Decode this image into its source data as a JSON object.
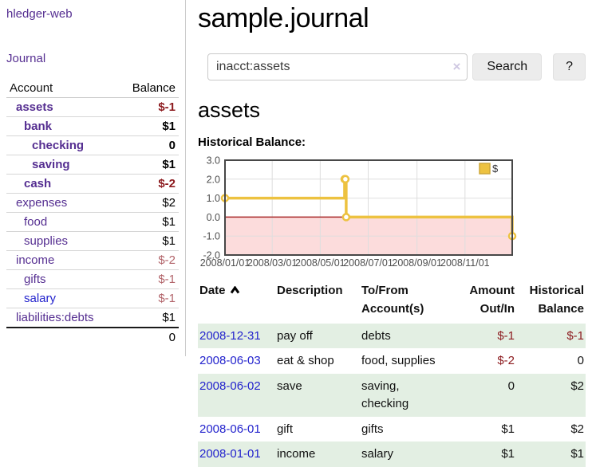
{
  "colors": {
    "purple": "#552e91",
    "link-blue": "#2323cd",
    "neg-strong": "#8c1a1e",
    "neg-soft": "#b2646a",
    "row-green": "#e3efe3",
    "series-yellow": "#edc240",
    "zero-line": "#a82828",
    "neg-region": "#fcdcdc"
  },
  "sidebar": {
    "app_title": "hledger-web",
    "journal_link": "Journal",
    "accounts_table": {
      "headers": {
        "account": "Account",
        "balance": "Balance"
      },
      "rows": [
        {
          "name": "assets",
          "balance": "$-1",
          "depth": 1,
          "bold": true,
          "negative": "strong"
        },
        {
          "name": "bank",
          "balance": "$1",
          "depth": 2,
          "bold": true
        },
        {
          "name": "checking",
          "balance": "0",
          "depth": 3,
          "bold": true
        },
        {
          "name": "saving",
          "balance": "$1",
          "depth": 3,
          "bold": true
        },
        {
          "name": "cash",
          "balance": "$-2",
          "depth": 2,
          "bold": true,
          "negative": "strong"
        },
        {
          "name": "expenses",
          "balance": "$2",
          "depth": 1
        },
        {
          "name": "food",
          "balance": "$1",
          "depth": 2
        },
        {
          "name": "supplies",
          "balance": "$1",
          "depth": 2
        },
        {
          "name": "income",
          "balance": "$-2",
          "depth": 1,
          "negative": "soft"
        },
        {
          "name": "gifts",
          "balance": "$-1",
          "depth": 2,
          "negative": "soft"
        },
        {
          "name": "salary",
          "balance": "$-1",
          "depth": 2,
          "negative": "soft",
          "link_color": "blue"
        },
        {
          "name": "liabilities:debts",
          "balance": "$1",
          "depth": 1
        }
      ],
      "total": "0"
    }
  },
  "main": {
    "title": "sample.journal",
    "search": {
      "value": "inacct:assets",
      "clear_icon": "×",
      "search_button": "Search",
      "help_button": "?"
    },
    "account_heading": "assets",
    "chart_heading": "Historical Balance:",
    "register": {
      "sort": {
        "column": "Date",
        "direction": "ascending"
      },
      "headers": [
        "Date",
        "Description",
        "To/From Account(s)",
        "Amount Out/In",
        "Historical Balance"
      ],
      "rows": [
        {
          "date": "2008-12-31",
          "description": "pay off",
          "accounts": "debts",
          "amount": "$-1",
          "balance": "$-1",
          "amount_negative": true,
          "balance_negative": true
        },
        {
          "date": "2008-06-03",
          "description": "eat & shop",
          "accounts": "food, supplies",
          "amount": "$-2",
          "balance": "0",
          "amount_negative": true
        },
        {
          "date": "2008-06-02",
          "description": "save",
          "accounts": "saving, checking",
          "amount": "0",
          "balance": "$2"
        },
        {
          "date": "2008-06-01",
          "description": "gift",
          "accounts": "gifts",
          "amount": "$1",
          "balance": "$2"
        },
        {
          "date": "2008-01-01",
          "description": "income",
          "accounts": "salary",
          "amount": "$1",
          "balance": "$1"
        }
      ]
    }
  },
  "chart_data": {
    "type": "line",
    "step": true,
    "title": "Historical Balance:",
    "xlabel": "",
    "ylabel": "",
    "series": [
      {
        "name": "$",
        "color": "#edc240",
        "points": [
          [
            "2008-01-01",
            1
          ],
          [
            "2008-06-01",
            2
          ],
          [
            "2008-06-02",
            2
          ],
          [
            "2008-06-03",
            0
          ],
          [
            "2008-12-31",
            -1
          ]
        ]
      }
    ],
    "xlim": [
      "2008-01-01",
      "2008-12-31"
    ],
    "ylim": [
      -2,
      3
    ],
    "y_ticks": [
      "3.0",
      "2.0",
      "1.0",
      "0.0",
      "-1.0",
      "-2.0"
    ],
    "x_ticks": [
      "2008/01/01",
      "2008/03/01",
      "2008/05/01",
      "2008/07/01",
      "2008/09/01",
      "2008/11/01"
    ],
    "legend": {
      "position": "top-right",
      "entries": [
        "$"
      ]
    },
    "grid": true,
    "negative_region_shaded": true,
    "zero_line": true
  }
}
